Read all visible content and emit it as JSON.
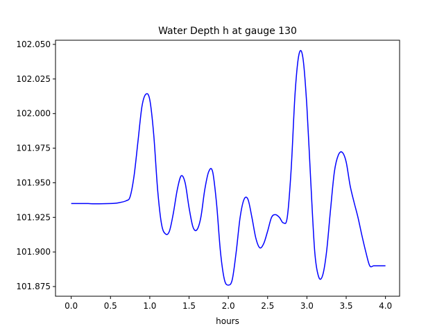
{
  "chart_data": {
    "type": "line",
    "title": "Water Depth h at gauge 130",
    "xlabel": "hours",
    "ylabel": "",
    "xlim": [
      -0.2,
      4.18
    ],
    "ylim": [
      101.868,
      102.053
    ],
    "xticks": [
      0.0,
      0.5,
      1.0,
      1.5,
      2.0,
      2.5,
      3.0,
      3.5,
      4.0
    ],
    "xtick_labels": [
      "0.0",
      "0.5",
      "1.0",
      "1.5",
      "2.0",
      "2.5",
      "3.0",
      "3.5",
      "4.0"
    ],
    "yticks": [
      101.875,
      101.9,
      101.925,
      101.95,
      101.975,
      102.0,
      102.025,
      102.05
    ],
    "ytick_labels": [
      "101.875",
      "101.900",
      "101.925",
      "101.950",
      "101.975",
      "102.000",
      "102.025",
      "102.050"
    ],
    "grid": false,
    "series": [
      {
        "color": "#0000ff",
        "x": [
          0.0,
          0.2,
          0.3,
          0.5,
          0.6,
          0.7,
          0.75,
          0.8,
          0.85,
          0.9,
          0.95,
          1.0,
          1.05,
          1.1,
          1.15,
          1.2,
          1.25,
          1.3,
          1.35,
          1.4,
          1.45,
          1.5,
          1.55,
          1.6,
          1.65,
          1.7,
          1.75,
          1.8,
          1.85,
          1.9,
          1.95,
          2.0,
          2.05,
          2.1,
          2.15,
          2.2,
          2.25,
          2.3,
          2.35,
          2.4,
          2.45,
          2.5,
          2.55,
          2.6,
          2.65,
          2.7,
          2.75,
          2.8,
          2.85,
          2.9,
          2.95,
          3.0,
          3.05,
          3.1,
          3.15,
          3.2,
          3.25,
          3.3,
          3.35,
          3.4,
          3.45,
          3.5,
          3.55,
          3.6,
          3.65,
          3.7,
          3.75,
          3.8,
          3.85,
          3.9,
          3.95,
          4.0
        ],
        "y": [
          101.935,
          101.935,
          101.9348,
          101.935,
          101.9355,
          101.937,
          101.94,
          101.955,
          101.98,
          102.005,
          102.014,
          102.01,
          101.985,
          101.945,
          101.92,
          101.913,
          101.915,
          101.928,
          101.945,
          101.955,
          101.95,
          101.932,
          101.918,
          101.916,
          101.925,
          101.945,
          101.958,
          101.958,
          101.935,
          101.9,
          101.88,
          101.876,
          101.88,
          101.9,
          101.925,
          101.938,
          101.938,
          101.925,
          101.91,
          101.903,
          101.906,
          101.915,
          101.925,
          101.927,
          101.925,
          101.921,
          101.925,
          101.96,
          102.015,
          102.043,
          102.04,
          102.005,
          101.95,
          101.9,
          101.882,
          101.883,
          101.9,
          101.93,
          101.958,
          101.97,
          101.972,
          101.965,
          101.948,
          101.936,
          101.925,
          101.912,
          101.9,
          101.89,
          101.89,
          101.89,
          101.89,
          101.89
        ]
      }
    ]
  }
}
